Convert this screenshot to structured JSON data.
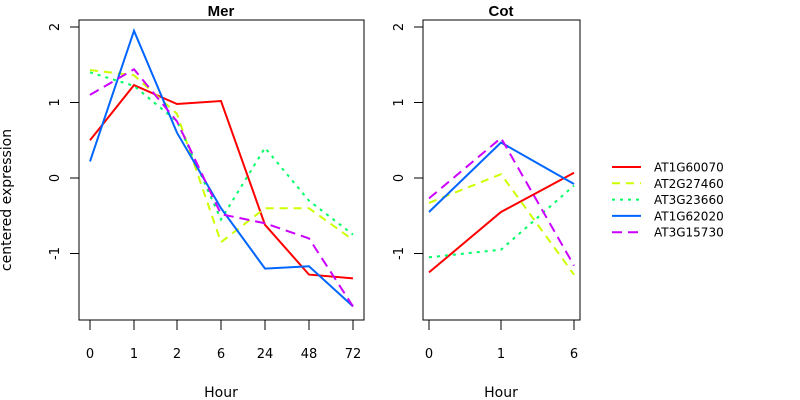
{
  "chart_data": [
    {
      "type": "line",
      "title": "Mer",
      "xlabel": "Hour",
      "ylabel": "centered expression",
      "categories": [
        "0",
        "1",
        "2",
        "6",
        "24",
        "48",
        "72"
      ],
      "yticks": [
        "-1",
        "0",
        "1",
        "2"
      ],
      "ylim": [
        -1.95,
        2.1
      ],
      "series": [
        {
          "name": "AT1G60070",
          "values": [
            0.5,
            1.23,
            0.98,
            1.02,
            -0.62,
            -1.28,
            -1.33
          ]
        },
        {
          "name": "AT2G27460",
          "values": [
            1.43,
            1.36,
            0.85,
            -0.85,
            -0.4,
            -0.4,
            -0.82
          ]
        },
        {
          "name": "AT3G23660",
          "values": [
            1.4,
            1.22,
            0.75,
            -0.55,
            0.4,
            -0.3,
            -0.75
          ]
        },
        {
          "name": "AT1G62020",
          "values": [
            0.22,
            1.95,
            0.6,
            -0.4,
            -1.2,
            -1.17,
            -1.7
          ]
        },
        {
          "name": "AT3G15730",
          "values": [
            1.1,
            1.44,
            0.75,
            -0.48,
            -0.6,
            -0.8,
            -1.7
          ]
        }
      ]
    },
    {
      "type": "line",
      "title": "Cot",
      "xlabel": "Hour",
      "ylabel": "",
      "categories": [
        "0",
        "1",
        "6"
      ],
      "yticks": [
        "-1",
        "0",
        "1",
        "2"
      ],
      "ylim": [
        -1.95,
        2.1
      ],
      "series": [
        {
          "name": "AT1G60070",
          "values": [
            -1.25,
            -0.45,
            0.07
          ]
        },
        {
          "name": "AT2G27460",
          "values": [
            -0.33,
            0.05,
            -1.28
          ]
        },
        {
          "name": "AT3G23660",
          "values": [
            -1.05,
            -0.95,
            -0.1
          ]
        },
        {
          "name": "AT1G62020",
          "values": [
            -0.45,
            0.47,
            -0.08
          ]
        },
        {
          "name": "AT3G15730",
          "values": [
            -0.27,
            0.53,
            -1.16
          ]
        }
      ]
    }
  ],
  "legend": {
    "placement": "right",
    "entries": [
      {
        "name": "AT1G60070",
        "color": "#ff0000",
        "style": "solid"
      },
      {
        "name": "AT2G27460",
        "color": "#ccff00",
        "style": "dashed"
      },
      {
        "name": "AT3G23660",
        "color": "#00ff66",
        "style": "dotted"
      },
      {
        "name": "AT1G62020",
        "color": "#0066ff",
        "style": "solid"
      },
      {
        "name": "AT3G15730",
        "color": "#cc00ff",
        "style": "longdash"
      }
    ]
  }
}
